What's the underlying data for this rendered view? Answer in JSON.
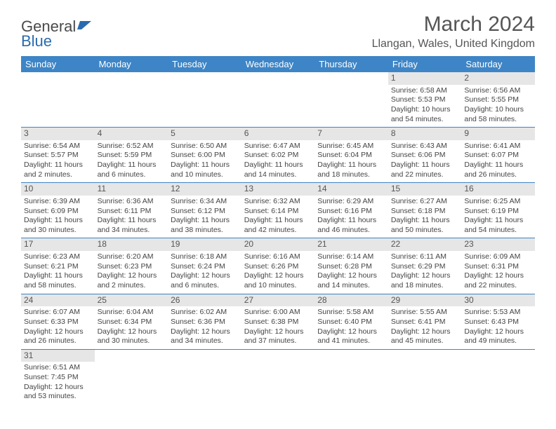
{
  "logo": {
    "word1": "General",
    "word2": "Blue"
  },
  "title": "March 2024",
  "location": "Llangan, Wales, United Kingdom",
  "colors": {
    "header_bg": "#3d85c6",
    "header_text": "#ffffff",
    "daynum_bg": "#e6e6e6",
    "row_border": "#3d85c6",
    "logo_accent": "#2a6bb0"
  },
  "weekdays": [
    "Sunday",
    "Monday",
    "Tuesday",
    "Wednesday",
    "Thursday",
    "Friday",
    "Saturday"
  ],
  "weeks": [
    [
      null,
      null,
      null,
      null,
      null,
      {
        "n": "1",
        "sunrise": "Sunrise: 6:58 AM",
        "sunset": "Sunset: 5:53 PM",
        "daylight": "Daylight: 10 hours and 54 minutes."
      },
      {
        "n": "2",
        "sunrise": "Sunrise: 6:56 AM",
        "sunset": "Sunset: 5:55 PM",
        "daylight": "Daylight: 10 hours and 58 minutes."
      }
    ],
    [
      {
        "n": "3",
        "sunrise": "Sunrise: 6:54 AM",
        "sunset": "Sunset: 5:57 PM",
        "daylight": "Daylight: 11 hours and 2 minutes."
      },
      {
        "n": "4",
        "sunrise": "Sunrise: 6:52 AM",
        "sunset": "Sunset: 5:59 PM",
        "daylight": "Daylight: 11 hours and 6 minutes."
      },
      {
        "n": "5",
        "sunrise": "Sunrise: 6:50 AM",
        "sunset": "Sunset: 6:00 PM",
        "daylight": "Daylight: 11 hours and 10 minutes."
      },
      {
        "n": "6",
        "sunrise": "Sunrise: 6:47 AM",
        "sunset": "Sunset: 6:02 PM",
        "daylight": "Daylight: 11 hours and 14 minutes."
      },
      {
        "n": "7",
        "sunrise": "Sunrise: 6:45 AM",
        "sunset": "Sunset: 6:04 PM",
        "daylight": "Daylight: 11 hours and 18 minutes."
      },
      {
        "n": "8",
        "sunrise": "Sunrise: 6:43 AM",
        "sunset": "Sunset: 6:06 PM",
        "daylight": "Daylight: 11 hours and 22 minutes."
      },
      {
        "n": "9",
        "sunrise": "Sunrise: 6:41 AM",
        "sunset": "Sunset: 6:07 PM",
        "daylight": "Daylight: 11 hours and 26 minutes."
      }
    ],
    [
      {
        "n": "10",
        "sunrise": "Sunrise: 6:39 AM",
        "sunset": "Sunset: 6:09 PM",
        "daylight": "Daylight: 11 hours and 30 minutes."
      },
      {
        "n": "11",
        "sunrise": "Sunrise: 6:36 AM",
        "sunset": "Sunset: 6:11 PM",
        "daylight": "Daylight: 11 hours and 34 minutes."
      },
      {
        "n": "12",
        "sunrise": "Sunrise: 6:34 AM",
        "sunset": "Sunset: 6:12 PM",
        "daylight": "Daylight: 11 hours and 38 minutes."
      },
      {
        "n": "13",
        "sunrise": "Sunrise: 6:32 AM",
        "sunset": "Sunset: 6:14 PM",
        "daylight": "Daylight: 11 hours and 42 minutes."
      },
      {
        "n": "14",
        "sunrise": "Sunrise: 6:29 AM",
        "sunset": "Sunset: 6:16 PM",
        "daylight": "Daylight: 11 hours and 46 minutes."
      },
      {
        "n": "15",
        "sunrise": "Sunrise: 6:27 AM",
        "sunset": "Sunset: 6:18 PM",
        "daylight": "Daylight: 11 hours and 50 minutes."
      },
      {
        "n": "16",
        "sunrise": "Sunrise: 6:25 AM",
        "sunset": "Sunset: 6:19 PM",
        "daylight": "Daylight: 11 hours and 54 minutes."
      }
    ],
    [
      {
        "n": "17",
        "sunrise": "Sunrise: 6:23 AM",
        "sunset": "Sunset: 6:21 PM",
        "daylight": "Daylight: 11 hours and 58 minutes."
      },
      {
        "n": "18",
        "sunrise": "Sunrise: 6:20 AM",
        "sunset": "Sunset: 6:23 PM",
        "daylight": "Daylight: 12 hours and 2 minutes."
      },
      {
        "n": "19",
        "sunrise": "Sunrise: 6:18 AM",
        "sunset": "Sunset: 6:24 PM",
        "daylight": "Daylight: 12 hours and 6 minutes."
      },
      {
        "n": "20",
        "sunrise": "Sunrise: 6:16 AM",
        "sunset": "Sunset: 6:26 PM",
        "daylight": "Daylight: 12 hours and 10 minutes."
      },
      {
        "n": "21",
        "sunrise": "Sunrise: 6:14 AM",
        "sunset": "Sunset: 6:28 PM",
        "daylight": "Daylight: 12 hours and 14 minutes."
      },
      {
        "n": "22",
        "sunrise": "Sunrise: 6:11 AM",
        "sunset": "Sunset: 6:29 PM",
        "daylight": "Daylight: 12 hours and 18 minutes."
      },
      {
        "n": "23",
        "sunrise": "Sunrise: 6:09 AM",
        "sunset": "Sunset: 6:31 PM",
        "daylight": "Daylight: 12 hours and 22 minutes."
      }
    ],
    [
      {
        "n": "24",
        "sunrise": "Sunrise: 6:07 AM",
        "sunset": "Sunset: 6:33 PM",
        "daylight": "Daylight: 12 hours and 26 minutes."
      },
      {
        "n": "25",
        "sunrise": "Sunrise: 6:04 AM",
        "sunset": "Sunset: 6:34 PM",
        "daylight": "Daylight: 12 hours and 30 minutes."
      },
      {
        "n": "26",
        "sunrise": "Sunrise: 6:02 AM",
        "sunset": "Sunset: 6:36 PM",
        "daylight": "Daylight: 12 hours and 34 minutes."
      },
      {
        "n": "27",
        "sunrise": "Sunrise: 6:00 AM",
        "sunset": "Sunset: 6:38 PM",
        "daylight": "Daylight: 12 hours and 37 minutes."
      },
      {
        "n": "28",
        "sunrise": "Sunrise: 5:58 AM",
        "sunset": "Sunset: 6:40 PM",
        "daylight": "Daylight: 12 hours and 41 minutes."
      },
      {
        "n": "29",
        "sunrise": "Sunrise: 5:55 AM",
        "sunset": "Sunset: 6:41 PM",
        "daylight": "Daylight: 12 hours and 45 minutes."
      },
      {
        "n": "30",
        "sunrise": "Sunrise: 5:53 AM",
        "sunset": "Sunset: 6:43 PM",
        "daylight": "Daylight: 12 hours and 49 minutes."
      }
    ],
    [
      {
        "n": "31",
        "sunrise": "Sunrise: 6:51 AM",
        "sunset": "Sunset: 7:45 PM",
        "daylight": "Daylight: 12 hours and 53 minutes."
      },
      null,
      null,
      null,
      null,
      null,
      null
    ]
  ]
}
